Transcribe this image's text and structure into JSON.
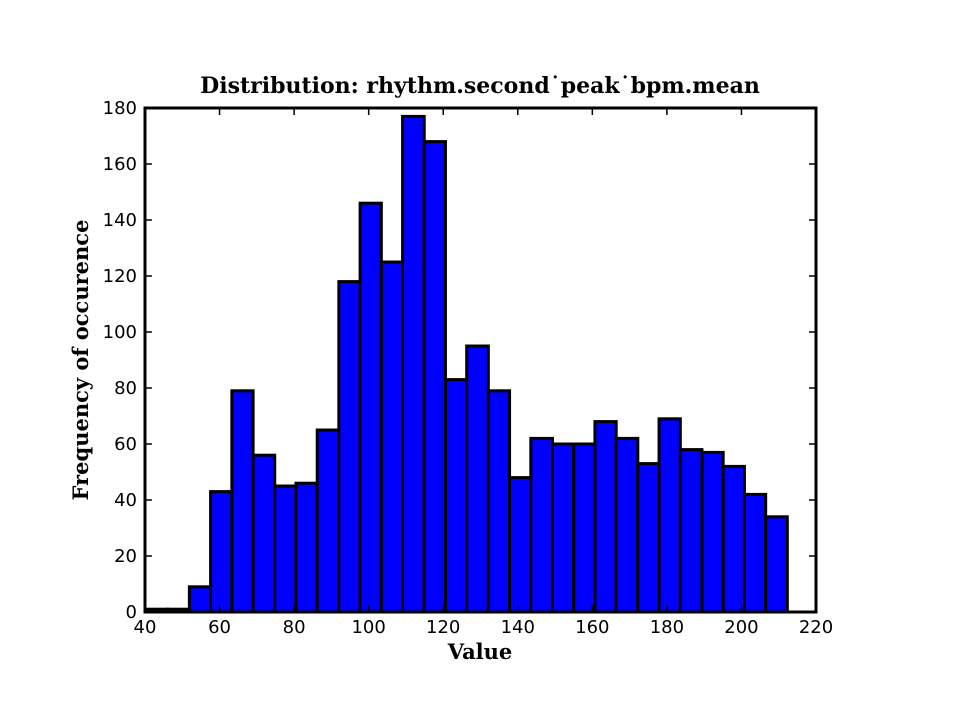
{
  "chart_data": {
    "type": "bar",
    "title": "Distribution: rhythm.second˙peak˙bpm.mean",
    "xlabel": "Value",
    "ylabel": "Frequency of occurence",
    "xlim": [
      40,
      220
    ],
    "ylim": [
      0,
      180
    ],
    "xticks": [
      40,
      60,
      80,
      100,
      120,
      140,
      160,
      180,
      200,
      220
    ],
    "yticks": [
      0,
      20,
      40,
      60,
      80,
      100,
      120,
      140,
      160,
      180
    ],
    "grid": false,
    "bar_color": "#0000ff",
    "edge_color": "#000000",
    "bins": [
      {
        "x0": 40.4,
        "x1": 46.1,
        "value": 1
      },
      {
        "x0": 46.1,
        "x1": 51.9,
        "value": 1
      },
      {
        "x0": 51.9,
        "x1": 57.6,
        "value": 9
      },
      {
        "x0": 57.6,
        "x1": 63.3,
        "value": 43
      },
      {
        "x0": 63.3,
        "x1": 69.0,
        "value": 79
      },
      {
        "x0": 69.0,
        "x1": 74.8,
        "value": 56
      },
      {
        "x0": 74.8,
        "x1": 80.5,
        "value": 45
      },
      {
        "x0": 80.5,
        "x1": 86.2,
        "value": 46
      },
      {
        "x0": 86.2,
        "x1": 92.0,
        "value": 65
      },
      {
        "x0": 92.0,
        "x1": 97.7,
        "value": 118
      },
      {
        "x0": 97.7,
        "x1": 103.4,
        "value": 146
      },
      {
        "x0": 103.4,
        "x1": 109.1,
        "value": 125
      },
      {
        "x0": 109.1,
        "x1": 114.9,
        "value": 177
      },
      {
        "x0": 114.9,
        "x1": 120.6,
        "value": 168
      },
      {
        "x0": 120.6,
        "x1": 126.3,
        "value": 83
      },
      {
        "x0": 126.3,
        "x1": 132.1,
        "value": 95
      },
      {
        "x0": 132.1,
        "x1": 137.8,
        "value": 79
      },
      {
        "x0": 137.8,
        "x1": 143.5,
        "value": 48
      },
      {
        "x0": 143.5,
        "x1": 149.3,
        "value": 62
      },
      {
        "x0": 149.3,
        "x1": 155.0,
        "value": 60
      },
      {
        "x0": 155.0,
        "x1": 160.7,
        "value": 60
      },
      {
        "x0": 160.7,
        "x1": 166.4,
        "value": 68
      },
      {
        "x0": 166.4,
        "x1": 172.2,
        "value": 62
      },
      {
        "x0": 172.2,
        "x1": 177.9,
        "value": 53
      },
      {
        "x0": 177.9,
        "x1": 183.6,
        "value": 69
      },
      {
        "x0": 183.6,
        "x1": 189.4,
        "value": 58
      },
      {
        "x0": 189.4,
        "x1": 195.1,
        "value": 57
      },
      {
        "x0": 195.1,
        "x1": 200.8,
        "value": 52
      },
      {
        "x0": 200.8,
        "x1": 206.5,
        "value": 42
      },
      {
        "x0": 206.5,
        "x1": 212.3,
        "value": 34
      }
    ]
  }
}
